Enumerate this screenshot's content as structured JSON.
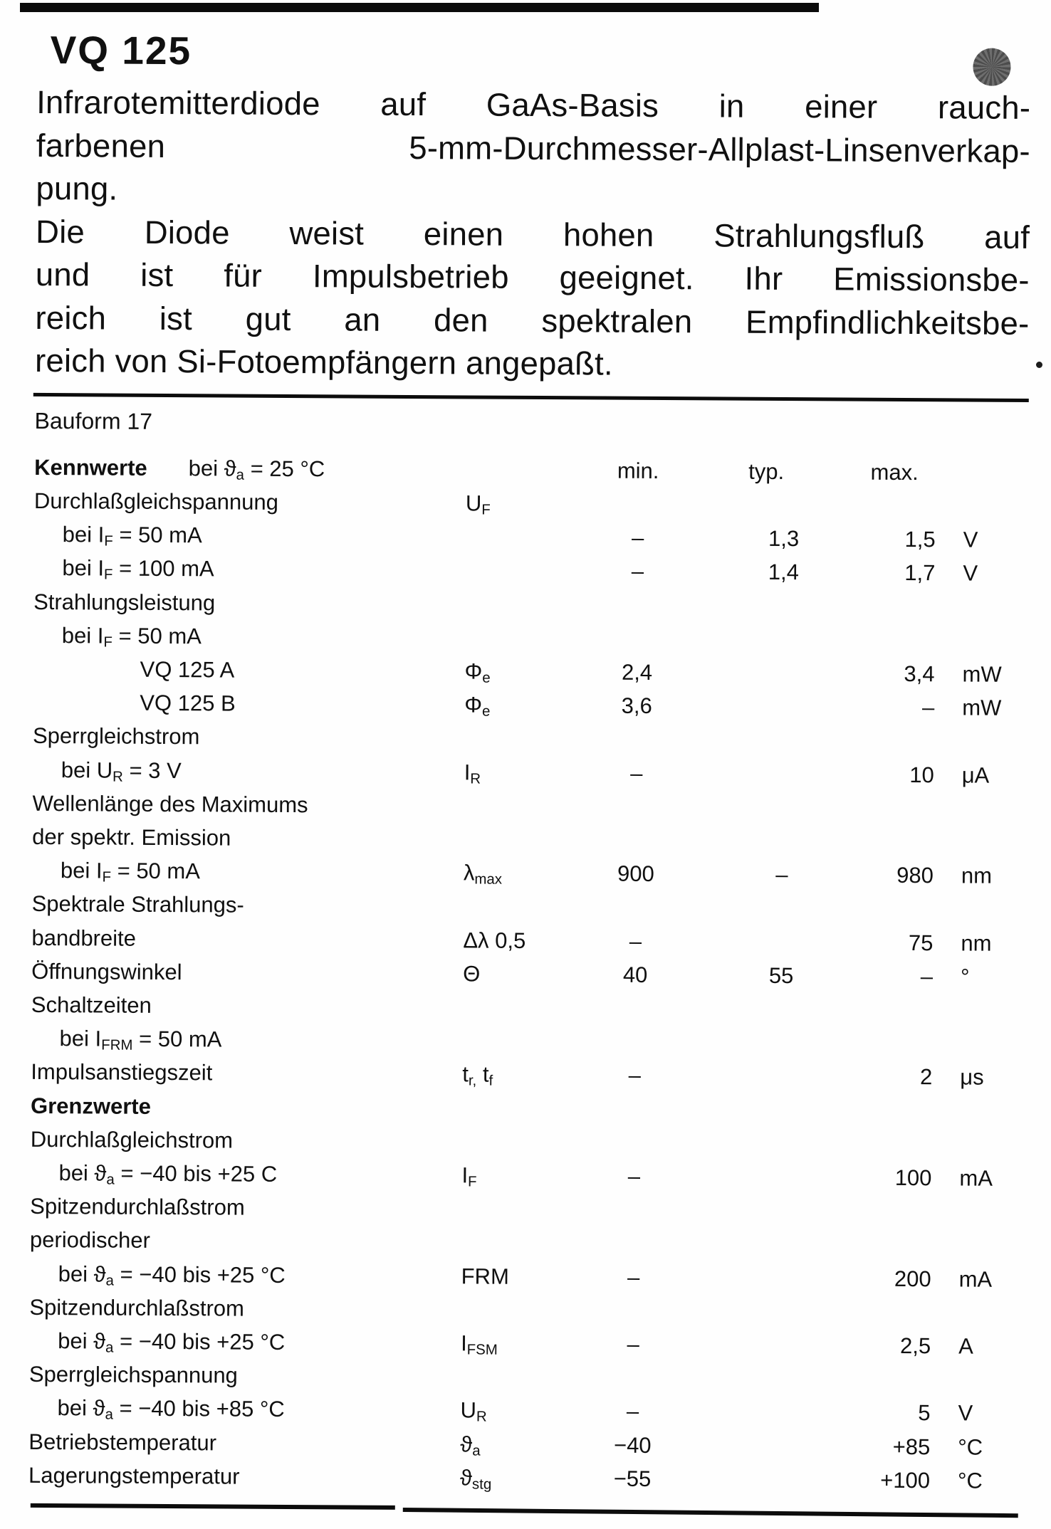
{
  "colors": {
    "ink": "#101010",
    "paper": "#fefefe",
    "halftone_dot": "#5d5d5d"
  },
  "header": {
    "title": "VQ 125"
  },
  "intro": {
    "lines": [
      "Infrarotemitterdiode auf GaAs-Basis in einer rauch-",
      "farbenen 5-mm-Durchmesser-Allplast-Linsenverkap-",
      "pung.",
      "Die Diode weist einen hohen Strahlungsfluß auf",
      "und ist für Impulsbetrieb geeignet. Ihr Emissionsbe-",
      "reich ist gut an den spektralen Empfindlichkeitsbe-",
      "reich von Si-Fotoempfängern angepaßt."
    ]
  },
  "section": {
    "bauform": "Bauform 17"
  },
  "table": {
    "kennwerte_label": "Kennwerte",
    "kennwerte_condition": [
      {
        "t": "bei ϑ"
      },
      {
        "t": "a",
        "sub": true
      },
      {
        "t": " = 25 °C"
      }
    ],
    "col_headers": [
      "min.",
      "typ.",
      "max."
    ],
    "rows": [
      {
        "label": [
          {
            "t": "Durchlaßgleichspannung"
          }
        ],
        "sym": [
          {
            "t": "U"
          },
          {
            "t": "F",
            "sub": true
          }
        ]
      },
      {
        "label": [
          {
            "t": "bei I"
          },
          {
            "t": "F",
            "sub": true
          },
          {
            "t": " =  50 mA"
          }
        ],
        "indent": 40,
        "min": "–",
        "typ": "1,3",
        "max": "1,5",
        "unit": "V"
      },
      {
        "label": [
          {
            "t": "bei I"
          },
          {
            "t": "F",
            "sub": true
          },
          {
            "t": " = 100 mA"
          }
        ],
        "indent": 40,
        "min": "–",
        "typ": "1,4",
        "max": "1,7",
        "unit": "V"
      },
      {
        "label": [
          {
            "t": "Strahlungsleistung"
          }
        ]
      },
      {
        "label": [
          {
            "t": "bei I"
          },
          {
            "t": "F",
            "sub": true
          },
          {
            "t": " = 50 mA"
          }
        ],
        "indent": 40
      },
      {
        "label": [
          {
            "t": "VQ 125 A"
          }
        ],
        "indent": 150,
        "sym": [
          {
            "t": "Φ"
          },
          {
            "t": "e",
            "sub": true
          }
        ],
        "min": "2,4",
        "max": "3,4",
        "unit": "mW"
      },
      {
        "label": [
          {
            "t": "VQ 125 B"
          }
        ],
        "indent": 150,
        "sym": [
          {
            "t": "Φ"
          },
          {
            "t": "e",
            "sub": true
          }
        ],
        "min": "3,6",
        "max": "–",
        "unit": "mW"
      },
      {
        "label": [
          {
            "t": "Sperrgleichstrom"
          }
        ]
      },
      {
        "label": [
          {
            "t": "bei U"
          },
          {
            "t": "R",
            "sub": true
          },
          {
            "t": " = 3 V"
          }
        ],
        "indent": 40,
        "sym": [
          {
            "t": "I"
          },
          {
            "t": "R",
            "sub": true
          }
        ],
        "min": "–",
        "max": "10",
        "unit": "μA"
      },
      {
        "label": [
          {
            "t": "Wellenlänge des Maximums"
          }
        ]
      },
      {
        "label": [
          {
            "t": "der spektr. Emission"
          }
        ]
      },
      {
        "label": [
          {
            "t": "bei I"
          },
          {
            "t": "F",
            "sub": true
          },
          {
            "t": " = 50 mA"
          }
        ],
        "indent": 40,
        "sym": [
          {
            "t": "λ"
          },
          {
            "t": "max",
            "sub": true
          }
        ],
        "min": "900",
        "typ": "–",
        "max": "980",
        "unit": "nm"
      },
      {
        "label": [
          {
            "t": "Spektrale Strahlungs-"
          }
        ]
      },
      {
        "label": [
          {
            "t": "bandbreite"
          }
        ],
        "sym": [
          {
            "t": "Δλ 0,5"
          }
        ],
        "min": "–",
        "max": "75",
        "unit": "nm"
      },
      {
        "label": [
          {
            "t": "Öffnungswinkel"
          }
        ],
        "sym": [
          {
            "t": "Θ"
          }
        ],
        "min": "40",
        "typ": "55",
        "max": "–",
        "unit": "°"
      },
      {
        "label": [
          {
            "t": "Schaltzeiten"
          }
        ]
      },
      {
        "label": [
          {
            "t": "bei I"
          },
          {
            "t": "FRM",
            "sub": true
          },
          {
            "t": " = 50 mA"
          }
        ],
        "indent": 40
      },
      {
        "label": [
          {
            "t": "Impulsanstiegszeit"
          }
        ],
        "sym": [
          {
            "t": "t"
          },
          {
            "t": "r,",
            "sub": true
          },
          {
            "t": " t"
          },
          {
            "t": "f",
            "sub": true
          }
        ],
        "min": "–",
        "max": "2",
        "unit": "μs"
      },
      {
        "label": [
          {
            "t": "Grenzwerte"
          }
        ],
        "bold": true
      },
      {
        "label": [
          {
            "t": "Durchlaßgleichstrom"
          }
        ]
      },
      {
        "label": [
          {
            "t": "bei  ϑ"
          },
          {
            "t": "a",
            "sub": true
          },
          {
            "t": " = −40 bis +25  C"
          }
        ],
        "indent": 40,
        "sym": [
          {
            "t": "I"
          },
          {
            "t": "F",
            "sub": true
          }
        ],
        "min": "–",
        "max": "100",
        "unit": "mA"
      },
      {
        "label": [
          {
            "t": "Spitzendurchlaßstrom"
          }
        ]
      },
      {
        "label": [
          {
            "t": "periodischer"
          }
        ]
      },
      {
        "label": [
          {
            "t": "bei  ϑ"
          },
          {
            "t": "a",
            "sub": true
          },
          {
            "t": " = −40 bis +25 °C"
          }
        ],
        "indent": 40,
        "sym": [
          {
            "t": "FRM"
          }
        ],
        "min": "–",
        "max": "200",
        "unit": "mA"
      },
      {
        "label": [
          {
            "t": "Spitzendurchlaßstrom"
          }
        ]
      },
      {
        "label": [
          {
            "t": "bei  ϑ"
          },
          {
            "t": "a",
            "sub": true
          },
          {
            "t": " = −40 bis +25 °C"
          }
        ],
        "indent": 40,
        "sym": [
          {
            "t": "I"
          },
          {
            "t": "FSM",
            "sub": true
          }
        ],
        "min": "–",
        "max": "2,5",
        "unit": "A"
      },
      {
        "label": [
          {
            "t": "Sperrgleichspannung"
          }
        ]
      },
      {
        "label": [
          {
            "t": "bei ϑ"
          },
          {
            "t": "a",
            "sub": true
          },
          {
            "t": " = −40 bis +85 °C"
          }
        ],
        "indent": 40,
        "sym": [
          {
            "t": "U"
          },
          {
            "t": "R",
            "sub": true
          }
        ],
        "min": "–",
        "max": "5",
        "unit": "V"
      },
      {
        "label": [
          {
            "t": "Betriebstemperatur"
          }
        ],
        "sym": [
          {
            "t": "ϑ"
          },
          {
            "t": "a",
            "sub": true
          }
        ],
        "min": "−40",
        "max": "+85",
        "unit": "°C"
      },
      {
        "label": [
          {
            "t": "Lagerungstemperatur"
          }
        ],
        "sym": [
          {
            "t": "ϑ"
          },
          {
            "t": "stg",
            "sub": true
          }
        ],
        "min": "−55",
        "max": "+100",
        "unit": "°C"
      }
    ]
  }
}
